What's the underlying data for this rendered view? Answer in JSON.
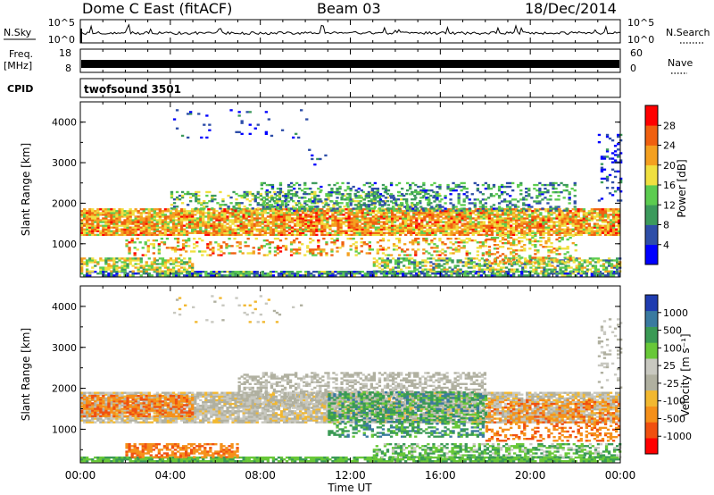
{
  "header": {
    "station": "Dome C East (fitACF)",
    "beam": "Beam 03",
    "date": "18/Dec/2014"
  },
  "top_panels": {
    "nsky_label": "N.Sky",
    "nsearch_label": "N.Search",
    "nsky_ticks": [
      "10^5",
      "10^0"
    ],
    "nsearch_ticks": [
      "10^5",
      "10^0"
    ],
    "freq_label": "Freq.",
    "freq_unit": "[MHz]",
    "freq_ticks": [
      "18",
      "8"
    ],
    "nave_label": "Nave",
    "nave_ticks": [
      "60",
      "0"
    ],
    "cpid_label": "CPID",
    "cpid_value": "twofsound 3501"
  },
  "colors": {
    "power_scale": [
      "#0000ff",
      "#2e4ea8",
      "#3c9a5c",
      "#5ccc50",
      "#f0e040",
      "#f4a020",
      "#f06010",
      "#ff0000"
    ],
    "velocity_scale": [
      "#ff0000",
      "#f05010",
      "#f5901a",
      "#f2b830",
      "#b0b0a0",
      "#c8c8c0",
      "#68c838",
      "#3a9a55",
      "#3a7aa0",
      "#1f3cb0"
    ]
  },
  "chart_data": [
    {
      "type": "heatmap",
      "name": "power",
      "ylabel": "Slant Range [km]",
      "yticks": [
        "4000",
        "3000",
        "2000",
        "1000"
      ],
      "ylim": [
        180,
        4500
      ],
      "colorbar_label": "Power [dB]",
      "colorbar_ticks": [
        "28",
        "24",
        "20",
        "16",
        "12",
        "8",
        "4"
      ],
      "bands": [
        {
          "t0": 0,
          "t1": 24,
          "r0": 1200,
          "r1": 1850,
          "fill": 0.85,
          "level": [
            0.45,
            0.9
          ]
        },
        {
          "t0": 4,
          "t1": 16,
          "r0": 1850,
          "r1": 2300,
          "fill": 0.35,
          "level": [
            0.2,
            0.6
          ]
        },
        {
          "t0": 8,
          "t1": 22,
          "r0": 1800,
          "r1": 2500,
          "fill": 0.3,
          "level": [
            0.1,
            0.5
          ]
        },
        {
          "t0": 0,
          "t1": 24,
          "r0": 200,
          "r1": 300,
          "fill": 0.8,
          "level": [
            0.05,
            0.55
          ]
        },
        {
          "t0": 0,
          "t1": 5,
          "r0": 300,
          "r1": 650,
          "fill": 0.6,
          "level": [
            0.3,
            0.75
          ]
        },
        {
          "t0": 13,
          "t1": 24,
          "r0": 300,
          "r1": 650,
          "fill": 0.55,
          "level": [
            0.2,
            0.7
          ]
        },
        {
          "t0": 2,
          "t1": 18,
          "r0": 700,
          "r1": 1150,
          "fill": 0.3,
          "level": [
            0.4,
            0.9
          ]
        },
        {
          "t0": 18,
          "t1": 22,
          "r0": 500,
          "r1": 1200,
          "fill": 0.35,
          "level": [
            0.4,
            0.85
          ]
        },
        {
          "t0": 4,
          "t1": 10,
          "r0": 3600,
          "r1": 4300,
          "fill": 0.05,
          "level": [
            0.0,
            0.3
          ]
        },
        {
          "t0": 10,
          "t1": 11,
          "r0": 2800,
          "r1": 3300,
          "fill": 0.12,
          "level": [
            0.0,
            0.3
          ]
        },
        {
          "t0": 23,
          "t1": 24,
          "r0": 2000,
          "r1": 3700,
          "fill": 0.15,
          "level": [
            0.0,
            0.3
          ]
        }
      ]
    },
    {
      "type": "heatmap",
      "name": "velocity",
      "ylabel": "Slant Range [km]",
      "yticks": [
        "4000",
        "3000",
        "2000",
        "1000"
      ],
      "ylim": [
        180,
        4500
      ],
      "xticks": [
        "00:00",
        "04:00",
        "08:00",
        "12:00",
        "16:00",
        "20:00",
        "00:00"
      ],
      "xlim": [
        0,
        24
      ],
      "xlabel": "Time UT",
      "colorbar_label": "Velocity [m s⁻¹]",
      "colorbar_ticks": [
        "1000",
        "500",
        "100",
        "25",
        "-25",
        "-100",
        "-500",
        "-1000"
      ],
      "bands": [
        {
          "t0": 0,
          "t1": 24,
          "r0": 1150,
          "r1": 1900,
          "fill": 0.85,
          "level": [
            0.35,
            0.6
          ]
        },
        {
          "t0": 7,
          "t1": 18,
          "r0": 1500,
          "r1": 2400,
          "fill": 0.5,
          "level": [
            0.4,
            0.55
          ]
        },
        {
          "t0": 11,
          "t1": 18,
          "r0": 800,
          "r1": 1900,
          "fill": 0.5,
          "level": [
            0.65,
            0.85
          ]
        },
        {
          "t0": 0,
          "t1": 5,
          "r0": 1300,
          "r1": 1800,
          "fill": 0.6,
          "level": [
            0.15,
            0.3
          ]
        },
        {
          "t0": 18,
          "t1": 24,
          "r0": 700,
          "r1": 1700,
          "fill": 0.4,
          "level": [
            0.15,
            0.3
          ]
        },
        {
          "t0": 0,
          "t1": 24,
          "r0": 200,
          "r1": 300,
          "fill": 0.85,
          "level": [
            0.6,
            0.75
          ]
        },
        {
          "t0": 2,
          "t1": 7,
          "r0": 300,
          "r1": 650,
          "fill": 0.6,
          "level": [
            0.15,
            0.3
          ]
        },
        {
          "t0": 13,
          "t1": 24,
          "r0": 300,
          "r1": 650,
          "fill": 0.55,
          "level": [
            0.55,
            0.8
          ]
        },
        {
          "t0": 4,
          "t1": 10,
          "r0": 3600,
          "r1": 4300,
          "fill": 0.05,
          "level": [
            0.35,
            0.6
          ]
        },
        {
          "t0": 23,
          "t1": 24,
          "r0": 2000,
          "r1": 3700,
          "fill": 0.15,
          "level": [
            0.4,
            0.6
          ]
        }
      ]
    }
  ]
}
